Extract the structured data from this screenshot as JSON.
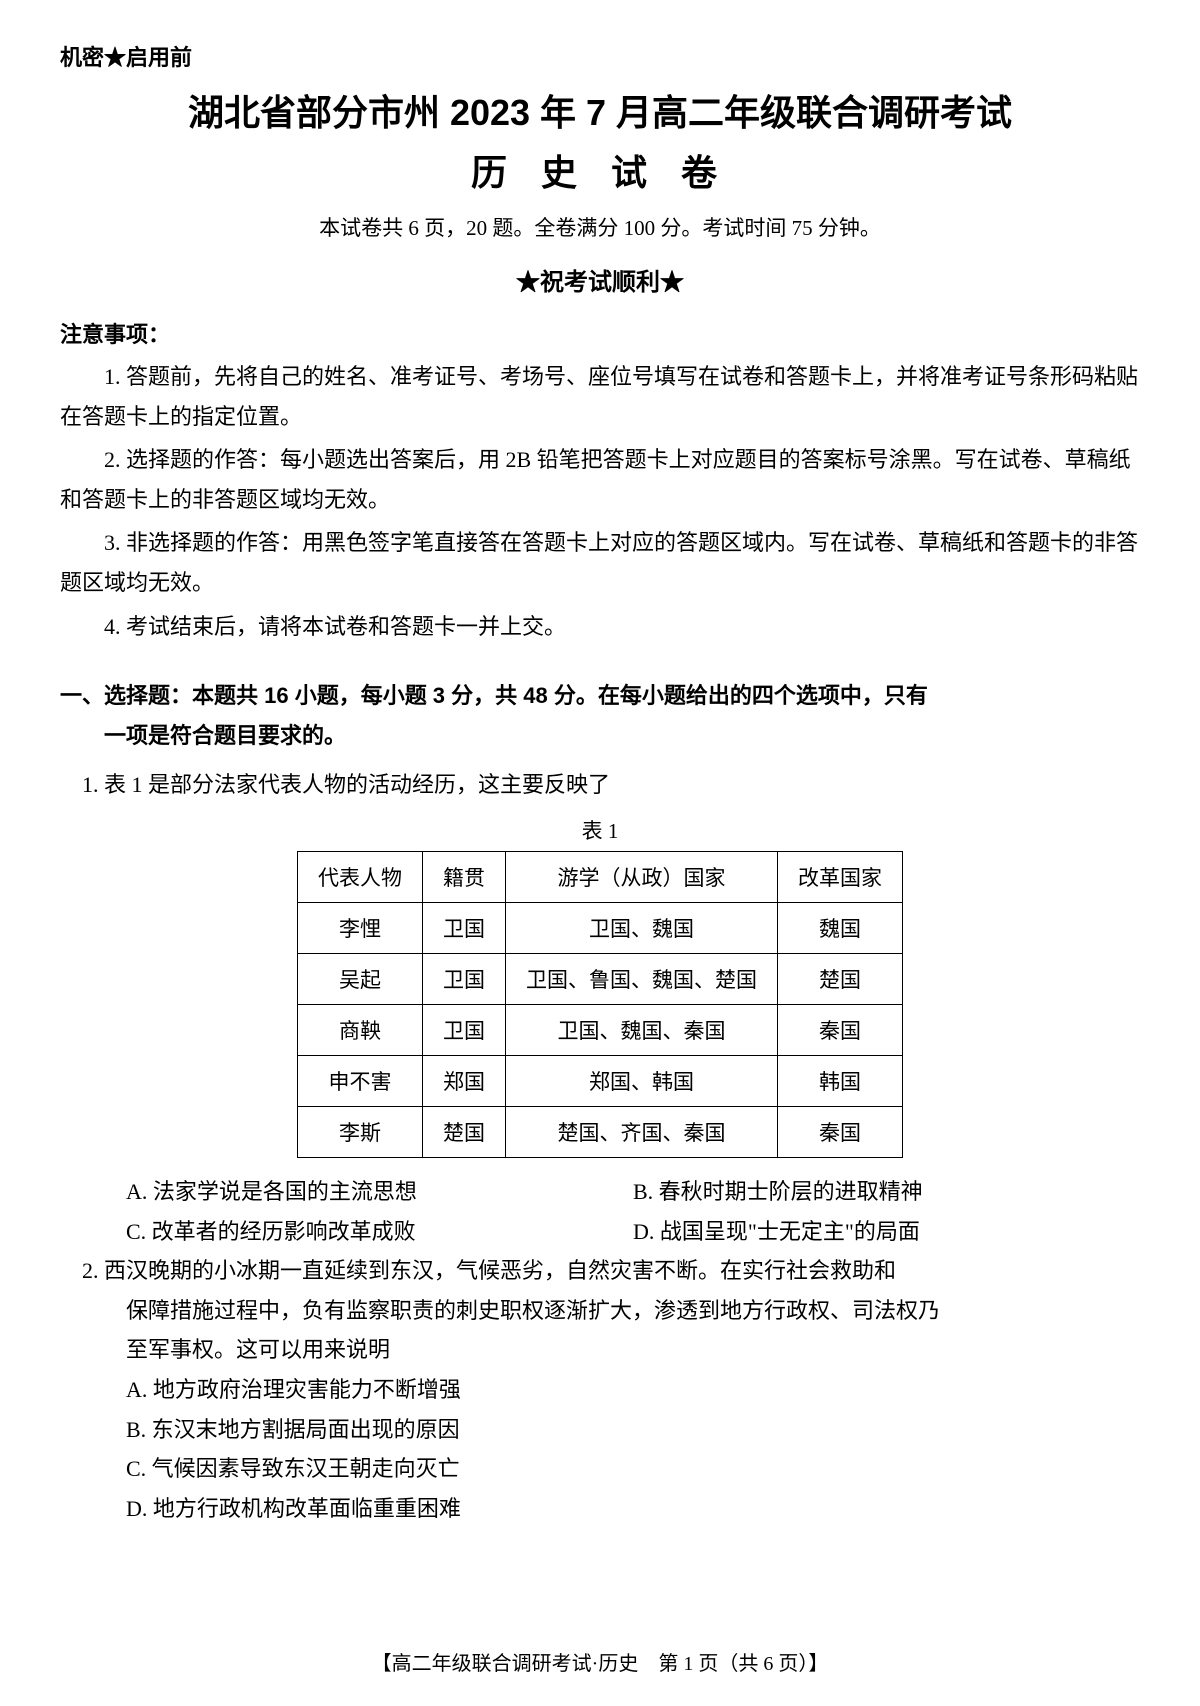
{
  "header": {
    "confidential": "机密★启用前",
    "main_title": "湖北省部分市州 2023 年 7 月高二年级联合调研考试",
    "sub_title": "历 史 试 卷",
    "exam_info": "本试卷共 6 页，20 题。全卷满分 100 分。考试时间 75 分钟。",
    "good_luck": "★祝考试顺利★"
  },
  "notice": {
    "title": "注意事项：",
    "items": [
      "1. 答题前，先将自己的姓名、准考证号、考场号、座位号填写在试卷和答题卡上，并将准考证号条形码粘贴在答题卡上的指定位置。",
      "2. 选择题的作答：每小题选出答案后，用 2B 铅笔把答题卡上对应题目的答案标号涂黑。写在试卷、草稿纸和答题卡上的非答题区域均无效。",
      "3. 非选择题的作答：用黑色签字笔直接答在答题卡上对应的答题区域内。写在试卷、草稿纸和答题卡的非答题区域均无效。",
      "4. 考试结束后，请将本试卷和答题卡一并上交。"
    ]
  },
  "section1": {
    "header_line1": "一、选择题：本题共 16 小题，每小题 3 分，共 48 分。在每小题给出的四个选项中，只有",
    "header_line2": "一项是符合题目要求的。"
  },
  "q1": {
    "text": "1. 表 1 是部分法家代表人物的活动经历，这主要反映了",
    "table_caption": "表 1",
    "table": {
      "headers": [
        "代表人物",
        "籍贯",
        "游学（从政）国家",
        "改革国家"
      ],
      "rows": [
        [
          "李悝",
          "卫国",
          "卫国、魏国",
          "魏国"
        ],
        [
          "吴起",
          "卫国",
          "卫国、鲁国、魏国、楚国",
          "楚国"
        ],
        [
          "商鞅",
          "卫国",
          "卫国、魏国、秦国",
          "秦国"
        ],
        [
          "申不害",
          "郑国",
          "郑国、韩国",
          "韩国"
        ],
        [
          "李斯",
          "楚国",
          "楚国、齐国、秦国",
          "秦国"
        ]
      ]
    },
    "options": {
      "a": "A. 法家学说是各国的主流思想",
      "b": "B. 春秋时期士阶层的进取精神",
      "c": "C. 改革者的经历影响改革成败",
      "d": "D. 战国呈现\"士无定主\"的局面"
    }
  },
  "q2": {
    "text_line1": "2. 西汉晚期的小冰期一直延续到东汉，气候恶劣，自然灾害不断。在实行社会救助和",
    "text_line2": "保障措施过程中，负有监察职责的刺史职权逐渐扩大，渗透到地方行政权、司法权乃",
    "text_line3": "至军事权。这可以用来说明",
    "options": {
      "a": "A. 地方政府治理灾害能力不断增强",
      "b": "B. 东汉末地方割据局面出现的原因",
      "c": "C. 气候因素导致东汉王朝走向灭亡",
      "d": "D. 地方行政机构改革面临重重困难"
    }
  },
  "footer": "【高二年级联合调研考试·历史　第 1 页（共 6 页）】"
}
